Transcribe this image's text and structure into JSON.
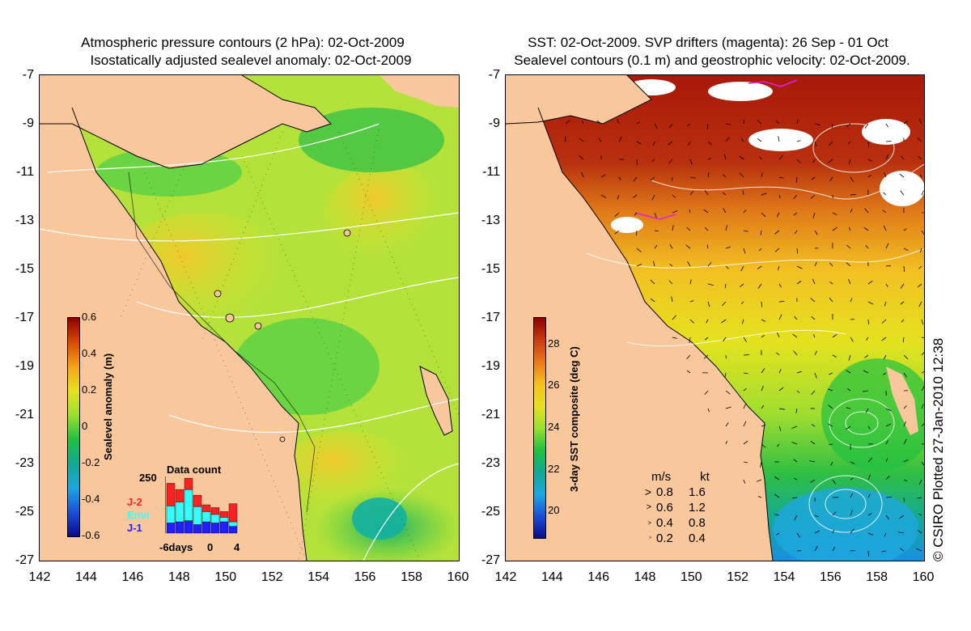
{
  "left_panel": {
    "title_line1": "Atmospheric pressure contours (2 hPa): 02-Oct-2009",
    "title_line2": "Isostatically adjusted sealevel anomaly: 02-Oct-2009",
    "colorbar": {
      "title": "Sealevel anomaly (m)",
      "ticks": [
        "0.6",
        "0.4",
        "0.2",
        "0",
        "-0.2",
        "-0.4",
        "-0.6"
      ],
      "colors": [
        "#8b0000",
        "#d84a00",
        "#f5a21a",
        "#e8e020",
        "#9ae031",
        "#22c040",
        "#13a893",
        "#1ea7e0",
        "#1a4fd8",
        "#0a0a8a"
      ]
    },
    "data_count": {
      "title": "Data count",
      "ymax_label": "250",
      "x_labels": [
        "-6days",
        "0",
        "4"
      ],
      "legend": [
        {
          "label": "J-2",
          "color": "#ff2020"
        },
        {
          "label": "Envi",
          "color": "#33ffff"
        },
        {
          "label": "J-1",
          "color": "#1f1fff"
        }
      ],
      "bars": [
        {
          "j1": 0.18,
          "envi": 0.3,
          "j2": 0.4
        },
        {
          "j1": 0.2,
          "envi": 0.35,
          "j2": 0.22
        },
        {
          "j1": 0.22,
          "envi": 0.55,
          "j2": 0.2
        },
        {
          "j1": 0.15,
          "envi": 0.32,
          "j2": 0.2
        },
        {
          "j1": 0.2,
          "envi": 0.18,
          "j2": 0.12
        },
        {
          "j1": 0.18,
          "envi": 0.15,
          "j2": 0.12
        },
        {
          "j1": 0.2,
          "envi": 0.08,
          "j2": 0.1
        },
        {
          "j1": 0.12,
          "envi": 0.08,
          "j2": 0.32
        }
      ]
    }
  },
  "right_panel": {
    "title_line1": "SST: 02-Oct-2009. SVP drifters (magenta): 26 Sep - 01 Oct",
    "title_line2": "Sealevel contours (0.1 m) and geostrophic velocity: 02-Oct-2009.",
    "colorbar": {
      "title": "3-day SST composite (deg C)",
      "ticks": [
        "28",
        "26",
        "24",
        "22",
        "20"
      ],
      "colors": [
        "#8b0000",
        "#c83a10",
        "#e87a18",
        "#f5c020",
        "#e8e020",
        "#9ae031",
        "#22c040",
        "#13a893",
        "#1ea7e0",
        "#1a4fd8",
        "#0a0a8a"
      ]
    },
    "vector_legend": {
      "header_ms": "m/s",
      "header_kt": "kt",
      "rows": [
        {
          "ms": "0.8",
          "kt": "1.6"
        },
        {
          "ms": "0.6",
          "kt": "1.2"
        },
        {
          "ms": "0.4",
          "kt": "0.8"
        },
        {
          "ms": "0.2",
          "kt": "0.4"
        }
      ]
    }
  },
  "axes": {
    "x_ticks": [
      "142",
      "144",
      "146",
      "148",
      "150",
      "152",
      "154",
      "156",
      "158",
      "160"
    ],
    "y_ticks": [
      "-7",
      "-9",
      "-11",
      "-13",
      "-15",
      "-17",
      "-19",
      "-21",
      "-23",
      "-25",
      "-27"
    ]
  },
  "credit": "© CSIRO Plotted 27-Jan-2010 12:38",
  "colors": {
    "land": "#f9c79c",
    "ocean_left": "#a8e030",
    "ocean_right_warm": "#b0180c"
  }
}
